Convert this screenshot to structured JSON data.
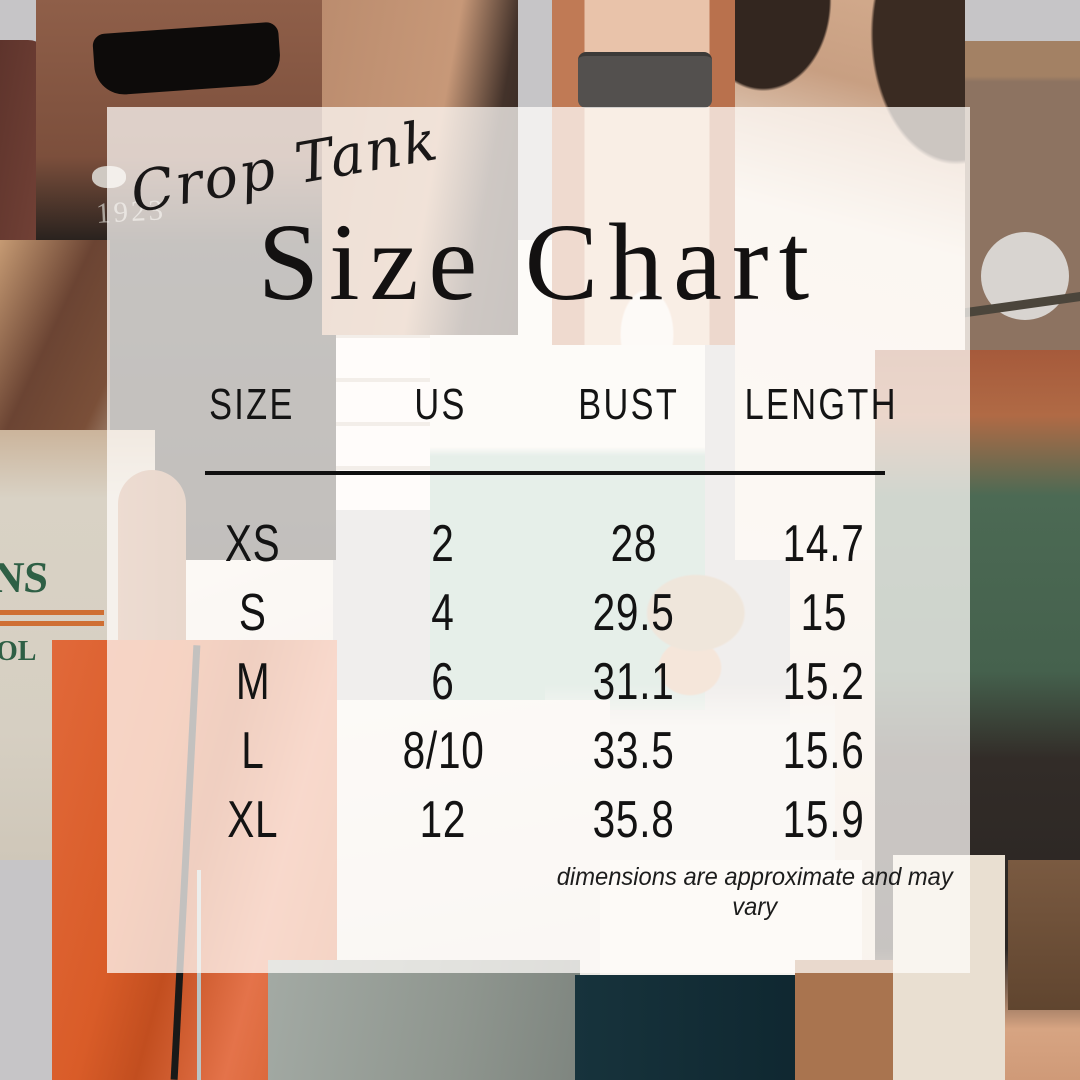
{
  "card": {
    "script_label": "Crop Tank",
    "title": "Size Chart",
    "table": {
      "headers": [
        "SIZE",
        "US",
        "BUST",
        "LENGTH"
      ],
      "rows": [
        [
          "XS",
          "2",
          "28",
          "14.7"
        ],
        [
          "S",
          "4",
          "29.5",
          "15"
        ],
        [
          "M",
          "6",
          "31.1",
          "15.2"
        ],
        [
          "L",
          "8/10",
          "33.5",
          "15.6"
        ],
        [
          "XL",
          "12",
          "35.8",
          "15.9"
        ]
      ]
    },
    "footnote": "dimensions are approximate and may vary"
  },
  "chart_data": {
    "type": "table",
    "title": "Size Chart",
    "subtitle": "Crop Tank",
    "columns": [
      "SIZE",
      "US",
      "BUST",
      "LENGTH"
    ],
    "rows": [
      [
        "XS",
        "2",
        "28",
        "14.7"
      ],
      [
        "S",
        "4",
        "29.5",
        "15"
      ],
      [
        "M",
        "6",
        "31.1",
        "15.2"
      ],
      [
        "L",
        "8/10",
        "33.5",
        "15.6"
      ],
      [
        "XL",
        "12",
        "35.8",
        "15.9"
      ]
    ],
    "note": "dimensions are approximate and may vary",
    "layout": "4-column centered table on translucent white card over photo collage"
  },
  "background": {
    "shirt_year_text": "1923",
    "tank_text_line1": "NS",
    "tank_text_line2": "OL",
    "colors": {
      "canvas_grey": "#c6c5c7",
      "panel_overlay": "rgba(255,252,250,0.74)",
      "ink": "#131313",
      "orange_pants": "#d95c28",
      "green_tank": "#4c6a54",
      "teal_shorts": "#9fc7ba",
      "brown_tank": "#8d7361"
    }
  }
}
